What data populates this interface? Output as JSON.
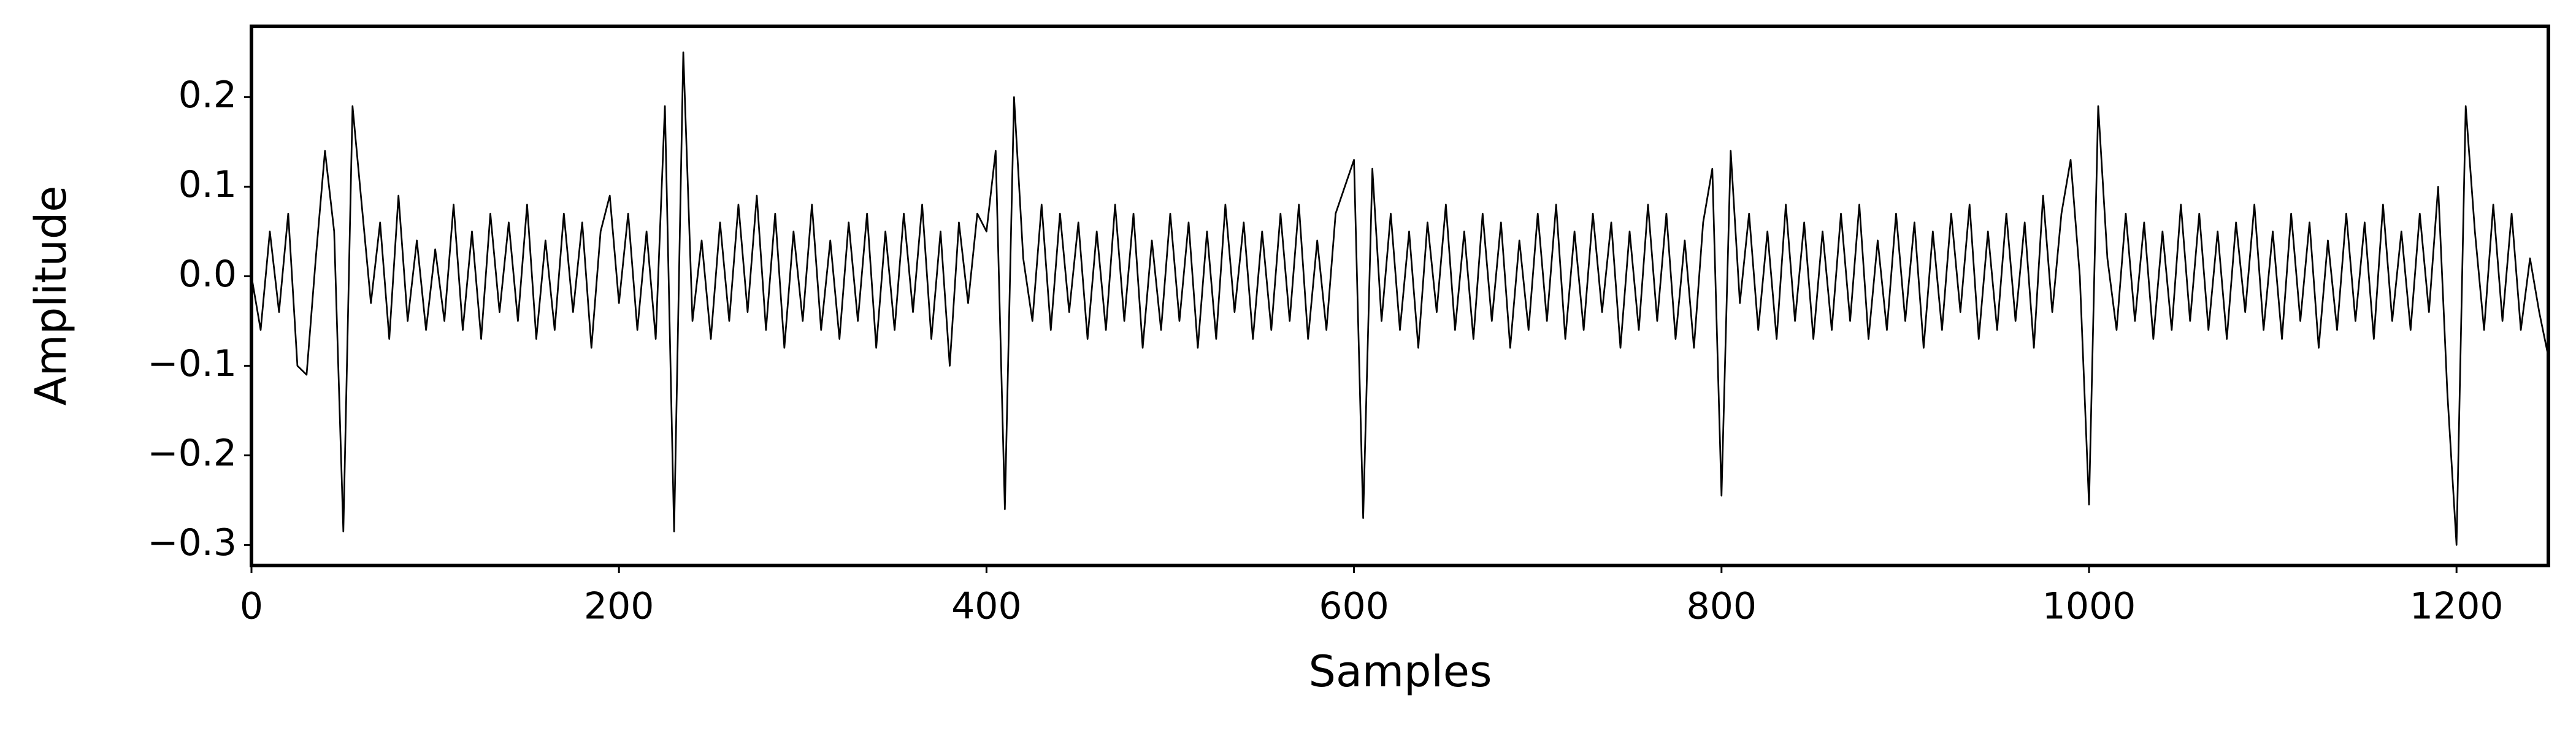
{
  "chart_data": {
    "type": "line",
    "x_label": "Samples",
    "y_label": "Amplitude",
    "x": [
      0,
      5,
      10,
      15,
      20,
      25,
      30,
      35,
      40,
      45,
      50,
      55,
      60,
      65,
      70,
      75,
      80,
      85,
      90,
      95,
      100,
      105,
      110,
      115,
      120,
      125,
      130,
      135,
      140,
      145,
      150,
      155,
      160,
      165,
      170,
      175,
      180,
      185,
      190,
      195,
      200,
      205,
      210,
      215,
      220,
      225,
      230,
      235,
      240,
      245,
      250,
      255,
      260,
      265,
      270,
      275,
      280,
      285,
      290,
      295,
      300,
      305,
      310,
      315,
      320,
      325,
      330,
      335,
      340,
      345,
      350,
      355,
      360,
      365,
      370,
      375,
      380,
      385,
      390,
      395,
      400,
      405,
      410,
      415,
      420,
      425,
      430,
      435,
      440,
      445,
      450,
      455,
      460,
      465,
      470,
      475,
      480,
      485,
      490,
      495,
      500,
      505,
      510,
      515,
      520,
      525,
      530,
      535,
      540,
      545,
      550,
      555,
      560,
      565,
      570,
      575,
      580,
      585,
      590,
      595,
      600,
      605,
      610,
      615,
      620,
      625,
      630,
      635,
      640,
      645,
      650,
      655,
      660,
      665,
      670,
      675,
      680,
      685,
      690,
      695,
      700,
      705,
      710,
      715,
      720,
      725,
      730,
      735,
      740,
      745,
      750,
      755,
      760,
      765,
      770,
      775,
      780,
      785,
      790,
      795,
      800,
      805,
      810,
      815,
      820,
      825,
      830,
      835,
      840,
      845,
      850,
      855,
      860,
      865,
      870,
      875,
      880,
      885,
      890,
      895,
      900,
      905,
      910,
      915,
      920,
      925,
      930,
      935,
      940,
      945,
      950,
      955,
      960,
      965,
      970,
      975,
      980,
      985,
      990,
      995,
      1000,
      1005,
      1010,
      1015,
      1020,
      1025,
      1030,
      1035,
      1040,
      1045,
      1050,
      1055,
      1060,
      1065,
      1070,
      1075,
      1080,
      1085,
      1090,
      1095,
      1100,
      1105,
      1110,
      1115,
      1120,
      1125,
      1130,
      1135,
      1140,
      1145,
      1150,
      1155,
      1160,
      1165,
      1170,
      1175,
      1180,
      1185,
      1190,
      1195,
      1200,
      1205,
      1210,
      1215,
      1220,
      1225,
      1230,
      1235,
      1240,
      1245,
      1250
    ],
    "series": [
      {
        "color": "#000000",
        "values": [
          0.0,
          -0.06,
          0.05,
          -0.04,
          0.07,
          -0.1,
          -0.11,
          0.02,
          0.14,
          0.05,
          -0.285,
          0.19,
          0.08,
          -0.03,
          0.06,
          -0.07,
          0.09,
          -0.05,
          0.04,
          -0.06,
          0.03,
          -0.05,
          0.08,
          -0.06,
          0.05,
          -0.07,
          0.07,
          -0.04,
          0.06,
          -0.05,
          0.08,
          -0.07,
          0.04,
          -0.06,
          0.07,
          -0.04,
          0.06,
          -0.08,
          0.05,
          0.09,
          -0.03,
          0.07,
          -0.06,
          0.05,
          -0.07,
          0.19,
          -0.285,
          0.25,
          -0.05,
          0.04,
          -0.07,
          0.06,
          -0.05,
          0.08,
          -0.04,
          0.09,
          -0.06,
          0.07,
          -0.08,
          0.05,
          -0.05,
          0.08,
          -0.06,
          0.04,
          -0.07,
          0.06,
          -0.05,
          0.07,
          -0.08,
          0.05,
          -0.06,
          0.07,
          -0.04,
          0.08,
          -0.07,
          0.05,
          -0.1,
          0.06,
          -0.03,
          0.07,
          0.05,
          0.14,
          -0.26,
          0.2,
          0.02,
          -0.05,
          0.08,
          -0.06,
          0.07,
          -0.04,
          0.06,
          -0.07,
          0.05,
          -0.06,
          0.08,
          -0.05,
          0.07,
          -0.08,
          0.04,
          -0.06,
          0.07,
          -0.05,
          0.06,
          -0.08,
          0.05,
          -0.07,
          0.08,
          -0.04,
          0.06,
          -0.07,
          0.05,
          -0.06,
          0.07,
          -0.05,
          0.08,
          -0.07,
          0.04,
          -0.06,
          0.07,
          0.1,
          0.13,
          -0.27,
          0.12,
          -0.05,
          0.07,
          -0.06,
          0.05,
          -0.08,
          0.06,
          -0.04,
          0.08,
          -0.06,
          0.05,
          -0.07,
          0.07,
          -0.05,
          0.06,
          -0.08,
          0.04,
          -0.06,
          0.07,
          -0.05,
          0.08,
          -0.07,
          0.05,
          -0.06,
          0.07,
          -0.04,
          0.06,
          -0.08,
          0.05,
          -0.06,
          0.08,
          -0.05,
          0.07,
          -0.07,
          0.04,
          -0.08,
          0.06,
          0.12,
          -0.245,
          0.14,
          -0.03,
          0.07,
          -0.06,
          0.05,
          -0.07,
          0.08,
          -0.05,
          0.06,
          -0.07,
          0.05,
          -0.06,
          0.07,
          -0.05,
          0.08,
          -0.07,
          0.04,
          -0.06,
          0.07,
          -0.05,
          0.06,
          -0.08,
          0.05,
          -0.06,
          0.07,
          -0.04,
          0.08,
          -0.07,
          0.05,
          -0.06,
          0.07,
          -0.05,
          0.06,
          -0.08,
          0.09,
          -0.04,
          0.07,
          0.13,
          0.0,
          -0.255,
          0.19,
          0.02,
          -0.06,
          0.07,
          -0.05,
          0.06,
          -0.07,
          0.05,
          -0.06,
          0.08,
          -0.05,
          0.07,
          -0.06,
          0.05,
          -0.07,
          0.06,
          -0.04,
          0.08,
          -0.06,
          0.05,
          -0.07,
          0.07,
          -0.05,
          0.06,
          -0.08,
          0.04,
          -0.06,
          0.07,
          -0.05,
          0.06,
          -0.07,
          0.08,
          -0.05,
          0.05,
          -0.06,
          0.07,
          -0.04,
          0.1,
          -0.13,
          -0.3,
          0.19,
          0.05,
          -0.06,
          0.08,
          -0.05,
          0.07,
          -0.06,
          0.02,
          -0.04,
          -0.09
        ]
      }
    ],
    "xlim": [
      0,
      1250
    ],
    "xticks": [
      0,
      200,
      400,
      600,
      800,
      1000,
      1200
    ],
    "ylim": [
      -0.323,
      0.279
    ],
    "yticks": [
      {
        "value": -0.3,
        "label": "−0.3"
      },
      {
        "value": -0.2,
        "label": "−0.2"
      },
      {
        "value": -0.1,
        "label": "−0.1"
      },
      {
        "value": 0,
        "label": "0.0"
      },
      0.1,
      0.2
    ],
    "grid": false
  }
}
